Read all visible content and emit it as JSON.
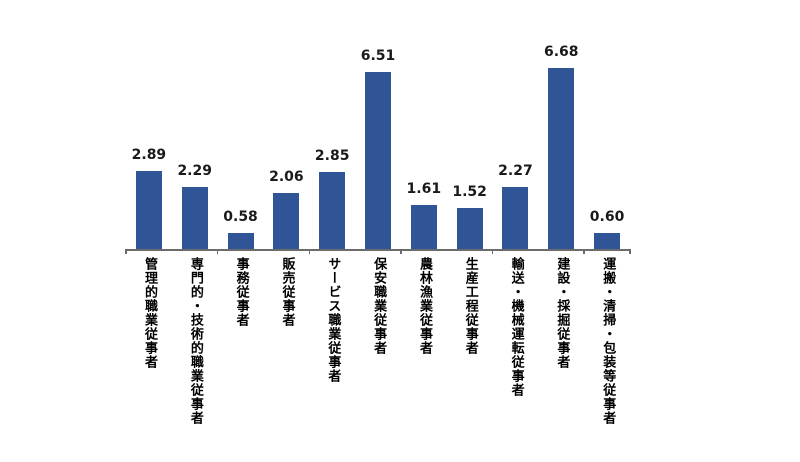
{
  "chart_data": {
    "type": "bar",
    "title": "",
    "xlabel": "",
    "ylabel": "",
    "categories": [
      "管理的職業従事者",
      "専門的・技術的職業従事者",
      "事務従事者",
      "販売従事者",
      "サービス職業従事者",
      "保安職業従事者",
      "農林漁業従事者",
      "生産工程従事者",
      "輸送・機械運転従事者",
      "建設・採掘従事者",
      "運搬・清掃・包装等従事者"
    ],
    "values": [
      2.89,
      2.29,
      0.58,
      2.06,
      2.85,
      6.51,
      1.61,
      1.52,
      2.27,
      6.68,
      0.6
    ],
    "value_labels": [
      "2.89",
      "2.29",
      "0.58",
      "2.06",
      "2.85",
      "6.51",
      "1.61",
      "1.52",
      "2.27",
      "6.68",
      "0.60"
    ],
    "ylim": [
      0,
      7
    ],
    "grid": false,
    "legend": false,
    "data_labels": "above-bars",
    "category_label_orientation": "vertical",
    "x_tick_mark_interval": 2,
    "colors": {
      "bar": "#2F5597",
      "axis": "#6B6B6B",
      "value_label": "#1A1A1A",
      "category_label": "#000000",
      "background": "#FFFFFF"
    }
  }
}
